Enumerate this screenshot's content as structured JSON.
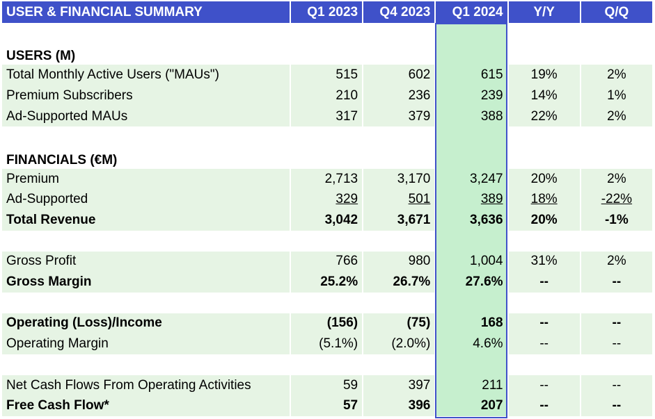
{
  "header": {
    "title": "USER & FINANCIAL SUMMARY",
    "columns": [
      "Q1 2023",
      "Q4 2023",
      "Q1 2024",
      "Y/Y",
      "Q/Q"
    ]
  },
  "rows": [
    {
      "type": "blank"
    },
    {
      "type": "section",
      "label": "USERS (M)"
    },
    {
      "type": "data",
      "label": "Total Monthly Active Users (\"MAUs\")",
      "values": [
        "515",
        "602",
        "615",
        "19%",
        "2%"
      ]
    },
    {
      "type": "data",
      "label": "Premium Subscribers",
      "values": [
        "210",
        "236",
        "239",
        "14%",
        "1%"
      ]
    },
    {
      "type": "data",
      "label": "Ad-Supported MAUs",
      "values": [
        "317",
        "379",
        "388",
        "22%",
        "2%"
      ]
    },
    {
      "type": "blank"
    },
    {
      "type": "section",
      "label": "FINANCIALS (€M)"
    },
    {
      "type": "data",
      "label": "Premium",
      "values": [
        "2,713",
        "3,170",
        "3,247",
        "20%",
        "2%"
      ]
    },
    {
      "type": "data",
      "label": "Ad-Supported",
      "underline": true,
      "values": [
        "329",
        "501",
        "389",
        "18%",
        "-22%"
      ]
    },
    {
      "type": "data",
      "label": "Total Revenue",
      "bold": true,
      "values": [
        "3,042",
        "3,671",
        "3,636",
        "20%",
        "-1%"
      ]
    },
    {
      "type": "blank"
    },
    {
      "type": "data",
      "label": "Gross Profit",
      "values": [
        "766",
        "980",
        "1,004",
        "31%",
        "2%"
      ]
    },
    {
      "type": "data",
      "label": "Gross Margin",
      "bold": true,
      "values": [
        "25.2%",
        "26.7%",
        "27.6%",
        "--",
        "--"
      ]
    },
    {
      "type": "blank"
    },
    {
      "type": "data",
      "label": "Operating (Loss)/Income",
      "bold": true,
      "values": [
        "(156)",
        "(75)",
        "168",
        "--",
        "--"
      ]
    },
    {
      "type": "data",
      "label": "Operating Margin",
      "values": [
        "(5.1%)",
        "(2.0%)",
        "4.6%",
        "--",
        "--"
      ]
    },
    {
      "type": "blank"
    },
    {
      "type": "data",
      "label": "Net Cash Flows From Operating Activities",
      "values": [
        "59",
        "397",
        "211",
        "--",
        "--"
      ]
    },
    {
      "type": "data",
      "label": "Free Cash Flow*",
      "bold": true,
      "values": [
        "57",
        "396",
        "207",
        "--",
        "--"
      ]
    }
  ],
  "colors": {
    "header_bg": "#3f51c9",
    "row_bg": "#e6f4e4",
    "highlight_bg": "#c6efce",
    "highlight_border": "#3f51c9"
  }
}
